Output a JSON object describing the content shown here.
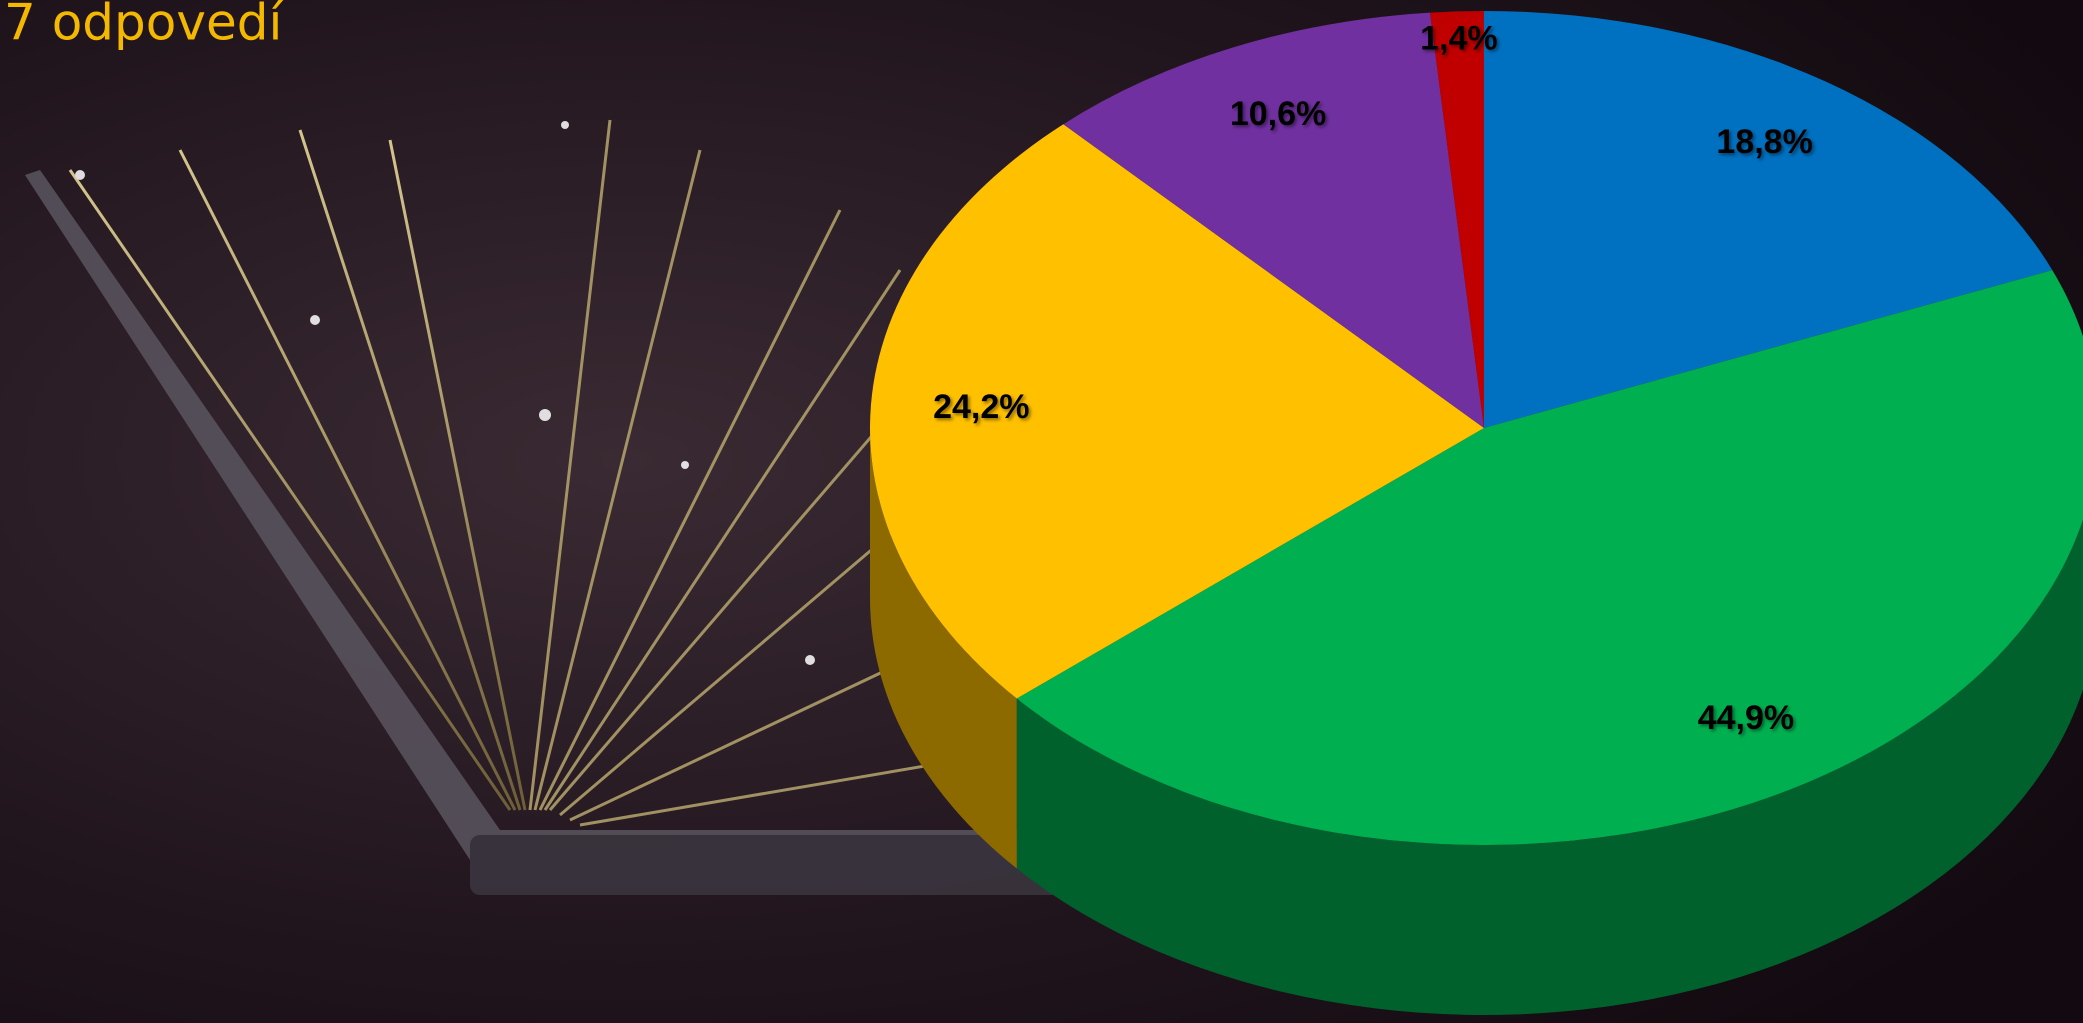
{
  "chart_data": {
    "type": "pie",
    "title": "7 odpovedí",
    "categories": [
      null,
      null,
      null,
      null,
      null
    ],
    "values": [
      18.8,
      44.9,
      24.2,
      10.6,
      1.4
    ],
    "value_labels": [
      "18,8%",
      "44,9%",
      "24,2%",
      "10,6%",
      "1,4%"
    ],
    "colors": [
      "#0070c0",
      "#00b050",
      "#ffc000",
      "#7030a0",
      "#c00000"
    ]
  }
}
